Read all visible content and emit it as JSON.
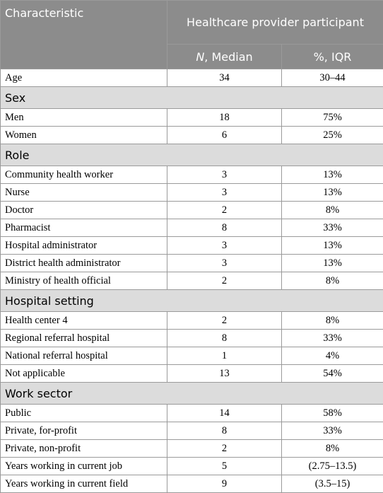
{
  "header": {
    "characteristic": "Characteristic",
    "group": "Healthcare provider participant",
    "col2": {
      "italic": "N",
      "rest": ", Median"
    },
    "col3": "%, IQR"
  },
  "rows": [
    {
      "cells": [
        "Age",
        "34",
        "30–44"
      ]
    },
    {
      "section": "Sex"
    },
    {
      "cells": [
        "Men",
        "18",
        "75%"
      ]
    },
    {
      "cells": [
        "Women",
        "6",
        "25%"
      ]
    },
    {
      "section": "Role"
    },
    {
      "cells": [
        "Community health worker",
        "3",
        "13%"
      ]
    },
    {
      "cells": [
        "Nurse",
        "3",
        "13%"
      ]
    },
    {
      "cells": [
        "Doctor",
        "2",
        "8%"
      ]
    },
    {
      "cells": [
        "Pharmacist",
        "8",
        "33%"
      ]
    },
    {
      "cells": [
        "Hospital administrator",
        "3",
        "13%"
      ]
    },
    {
      "cells": [
        "District health administrator",
        "3",
        "13%"
      ]
    },
    {
      "cells": [
        "Ministry of health official",
        "2",
        "8%"
      ]
    },
    {
      "section": "Hospital setting"
    },
    {
      "cells": [
        "Health center 4",
        "2",
        "8%"
      ]
    },
    {
      "cells": [
        "Regional referral hospital",
        "8",
        "33%"
      ]
    },
    {
      "cells": [
        "National referral hospital",
        "1",
        "4%"
      ]
    },
    {
      "cells": [
        "Not applicable",
        "13",
        "54%"
      ]
    },
    {
      "section": "Work sector"
    },
    {
      "cells": [
        "Public",
        "14",
        "58%"
      ]
    },
    {
      "cells": [
        "Private, for-profit",
        "8",
        "33%"
      ]
    },
    {
      "cells": [
        "Private, non-profit",
        "2",
        "8%"
      ]
    },
    {
      "cells": [
        "Years working in current job",
        "5",
        "(2.75–13.5)"
      ]
    },
    {
      "cells": [
        "Years working in current field",
        "9",
        "(3.5–15)"
      ]
    }
  ]
}
